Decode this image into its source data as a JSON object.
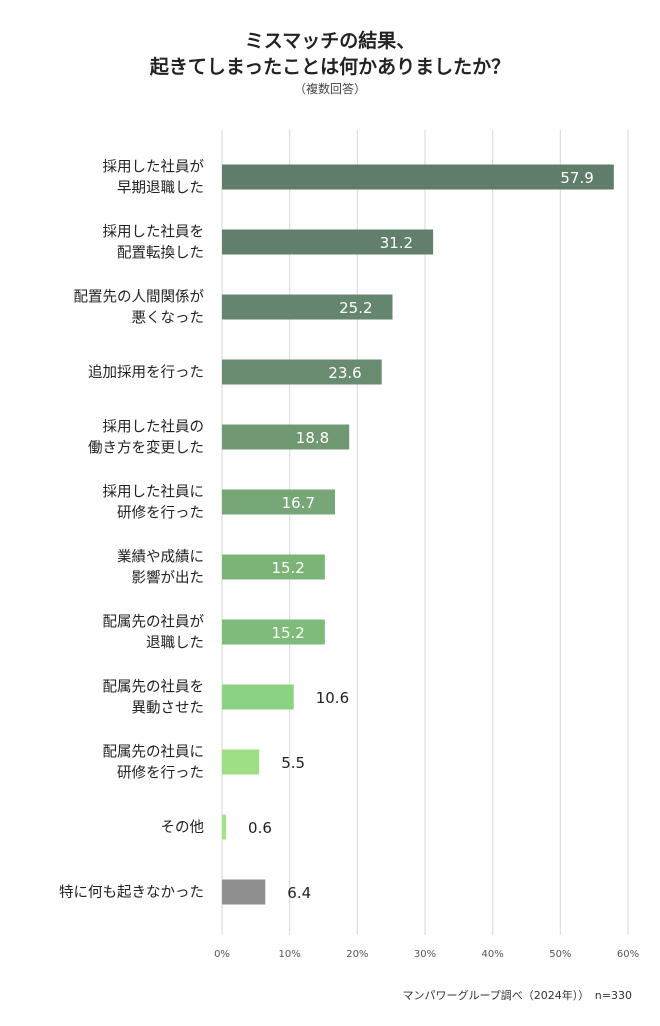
{
  "title_line1": "ミスマッチの結果、",
  "title_line2": "起きてしまったことは何かありましたか？",
  "subtitle": "（複数回答）",
  "source": "マンパワーグループ調べ（2024年））　n=330",
  "chart_data": {
    "type": "bar",
    "orientation": "horizontal",
    "unit": "%",
    "xlim": [
      0,
      60
    ],
    "grid": true,
    "ticks": [
      "0%",
      "10%",
      "20%",
      "30%",
      "40%",
      "50%",
      "60%"
    ],
    "categories": [
      [
        "採用した社員が",
        "早期退職した"
      ],
      [
        "採用した社員を",
        "配置転換した"
      ],
      [
        "配置先の人間関係が",
        "悪くなった"
      ],
      [
        "追加採用を行った"
      ],
      [
        "採用した社員の",
        "働き方を変更した"
      ],
      [
        "採用した社員に",
        "研修を行った"
      ],
      [
        "業績や成績に",
        "影響が出た"
      ],
      [
        "配属先の社員が",
        "退職した"
      ],
      [
        "配属先の社員を",
        "異動させた"
      ],
      [
        "配属先の社員に",
        "研修を行った"
      ],
      [
        "その他"
      ],
      [
        "特に何も起きなかった"
      ]
    ],
    "values": [
      57.9,
      31.2,
      25.2,
      23.6,
      18.8,
      16.7,
      15.2,
      15.2,
      10.6,
      5.5,
      0.6,
      6.4
    ],
    "value_labels": [
      "57.9",
      "31.2",
      "25.2",
      "23.6",
      "18.8",
      "16.7",
      "15.2",
      "15.2",
      "10.6",
      "5.5",
      "0.6",
      "6.4"
    ],
    "colors": [
      "#5f7d69",
      "#627f6b",
      "#65866e",
      "#698c71",
      "#6f9873",
      "#77a776",
      "#7bb477",
      "#7fbb79",
      "#8cd283",
      "#9edf86",
      "#9fe58a",
      "#8f8f8f"
    ]
  }
}
